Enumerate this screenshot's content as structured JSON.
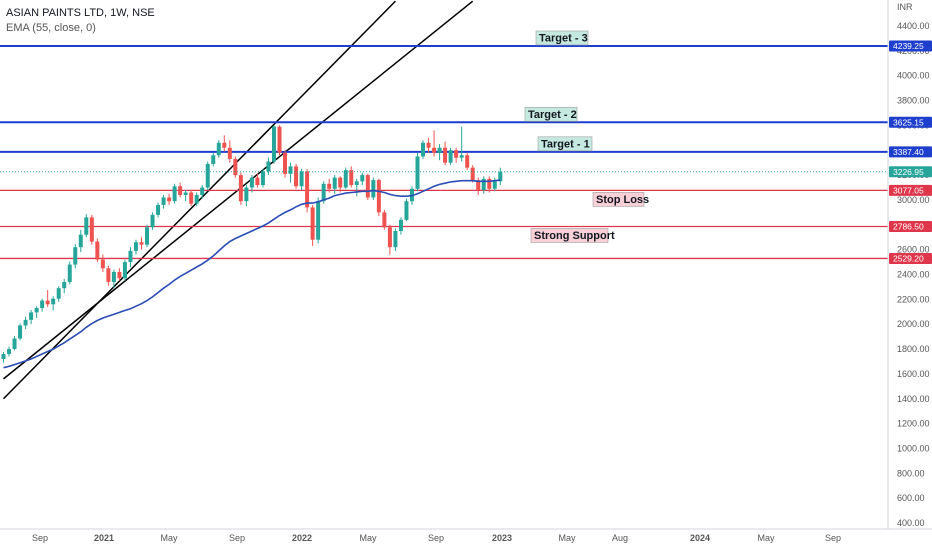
{
  "header": {
    "symbol_line": "ASIAN PAINTS LTD, 1W, NSE",
    "indicator_line": "EMA (55, close, 0)"
  },
  "price_axis": {
    "currency": "INR",
    "ticks": [
      "4400.00",
      "4200.00",
      "4000.00",
      "3800.00",
      "3600.00",
      "3400.00",
      "3200.00",
      "3000.00",
      "2800.00",
      "2600.00",
      "2400.00",
      "2200.00",
      "2000.00",
      "1800.00",
      "1600.00",
      "1400.00",
      "1200.00",
      "1000.00",
      "800.00",
      "600.00",
      "400.00"
    ]
  },
  "time_axis": {
    "ticks": [
      "Sep",
      "2021",
      "May",
      "Sep",
      "2022",
      "May",
      "Sep",
      "2023",
      "May",
      "Aug",
      "2024",
      "May",
      "Sep"
    ]
  },
  "colors": {
    "up": "#26a69a",
    "down": "#ef5350",
    "ema": "#2a4db5",
    "target_line": "#1e3fce",
    "support_line": "#e0364c",
    "trendline": "#000000",
    "last_price": "#26a69a",
    "target_label_bg": "#c6e9df",
    "support_label_bg": "#f8d0d6"
  },
  "levels": [
    {
      "name": "Target - 3",
      "price": 4239.25,
      "price_label": "4239.25",
      "kind": "target"
    },
    {
      "name": "Target - 2",
      "price": 3625.15,
      "price_label": "3625.15",
      "kind": "target"
    },
    {
      "name": "Target - 1",
      "price": 3387.4,
      "price_label": "3387.40",
      "kind": "target"
    },
    {
      "name": "Stop Loss",
      "price": 3077.05,
      "price_label": "3077.05",
      "kind": "support"
    },
    {
      "name": "Strong Support",
      "price": 2786.5,
      "price_label": "2786.50",
      "kind": "support"
    },
    {
      "name": "",
      "price": 2529.2,
      "price_label": "2529.20",
      "kind": "support"
    }
  ],
  "last_price": {
    "price": 3226.95,
    "label": "3226.95"
  },
  "chart_data": {
    "type": "candlestick",
    "title": "ASIAN PAINTS LTD, 1W, NSE",
    "xlabel": "",
    "ylabel": "",
    "ylim": [
      400,
      4600
    ],
    "grid": false,
    "candles": [
      {
        "o": 1720,
        "h": 1775,
        "l": 1690,
        "c": 1760
      },
      {
        "o": 1760,
        "h": 1820,
        "l": 1740,
        "c": 1800
      },
      {
        "o": 1800,
        "h": 1905,
        "l": 1790,
        "c": 1885
      },
      {
        "o": 1885,
        "h": 2005,
        "l": 1870,
        "c": 1990
      },
      {
        "o": 1990,
        "h": 2060,
        "l": 1960,
        "c": 2035
      },
      {
        "o": 2035,
        "h": 2115,
        "l": 2000,
        "c": 2095
      },
      {
        "o": 2095,
        "h": 2145,
        "l": 2050,
        "c": 2130
      },
      {
        "o": 2130,
        "h": 2205,
        "l": 2100,
        "c": 2190
      },
      {
        "o": 2190,
        "h": 2275,
        "l": 2140,
        "c": 2160
      },
      {
        "o": 2160,
        "h": 2225,
        "l": 2110,
        "c": 2205
      },
      {
        "o": 2205,
        "h": 2305,
        "l": 2180,
        "c": 2290
      },
      {
        "o": 2290,
        "h": 2365,
        "l": 2250,
        "c": 2340
      },
      {
        "o": 2340,
        "h": 2505,
        "l": 2320,
        "c": 2480
      },
      {
        "o": 2480,
        "h": 2645,
        "l": 2450,
        "c": 2620
      },
      {
        "o": 2620,
        "h": 2760,
        "l": 2580,
        "c": 2720
      },
      {
        "o": 2720,
        "h": 2885,
        "l": 2700,
        "c": 2860
      },
      {
        "o": 2860,
        "h": 2880,
        "l": 2640,
        "c": 2665
      },
      {
        "o": 2665,
        "h": 2690,
        "l": 2500,
        "c": 2520
      },
      {
        "o": 2520,
        "h": 2560,
        "l": 2420,
        "c": 2450
      },
      {
        "o": 2450,
        "h": 2470,
        "l": 2310,
        "c": 2340
      },
      {
        "o": 2340,
        "h": 2440,
        "l": 2290,
        "c": 2420
      },
      {
        "o": 2420,
        "h": 2450,
        "l": 2350,
        "c": 2370
      },
      {
        "o": 2370,
        "h": 2520,
        "l": 2350,
        "c": 2500
      },
      {
        "o": 2500,
        "h": 2620,
        "l": 2460,
        "c": 2590
      },
      {
        "o": 2590,
        "h": 2680,
        "l": 2560,
        "c": 2660
      },
      {
        "o": 2660,
        "h": 2700,
        "l": 2600,
        "c": 2640
      },
      {
        "o": 2640,
        "h": 2800,
        "l": 2620,
        "c": 2780
      },
      {
        "o": 2780,
        "h": 2900,
        "l": 2760,
        "c": 2880
      },
      {
        "o": 2880,
        "h": 2980,
        "l": 2860,
        "c": 2960
      },
      {
        "o": 2960,
        "h": 3040,
        "l": 2930,
        "c": 3020
      },
      {
        "o": 3020,
        "h": 3050,
        "l": 2960,
        "c": 2990
      },
      {
        "o": 2990,
        "h": 3130,
        "l": 2970,
        "c": 3110
      },
      {
        "o": 3110,
        "h": 3140,
        "l": 3020,
        "c": 3040
      },
      {
        "o": 3040,
        "h": 3080,
        "l": 2990,
        "c": 3060
      },
      {
        "o": 3060,
        "h": 3080,
        "l": 2950,
        "c": 2970
      },
      {
        "o": 2970,
        "h": 3060,
        "l": 2950,
        "c": 3040
      },
      {
        "o": 3040,
        "h": 3120,
        "l": 3010,
        "c": 3100
      },
      {
        "o": 3100,
        "h": 3310,
        "l": 3080,
        "c": 3290
      },
      {
        "o": 3290,
        "h": 3380,
        "l": 3270,
        "c": 3360
      },
      {
        "o": 3360,
        "h": 3480,
        "l": 3340,
        "c": 3460
      },
      {
        "o": 3460,
        "h": 3520,
        "l": 3390,
        "c": 3420
      },
      {
        "o": 3420,
        "h": 3480,
        "l": 3300,
        "c": 3330
      },
      {
        "o": 3330,
        "h": 3350,
        "l": 3180,
        "c": 3200
      },
      {
        "o": 3200,
        "h": 3220,
        "l": 2960,
        "c": 2990
      },
      {
        "o": 2990,
        "h": 3120,
        "l": 2950,
        "c": 3100
      },
      {
        "o": 3100,
        "h": 3200,
        "l": 3060,
        "c": 3180
      },
      {
        "o": 3180,
        "h": 3210,
        "l": 3100,
        "c": 3120
      },
      {
        "o": 3120,
        "h": 3250,
        "l": 3100,
        "c": 3230
      },
      {
        "o": 3230,
        "h": 3340,
        "l": 3200,
        "c": 3310
      },
      {
        "o": 3310,
        "h": 3600,
        "l": 3290,
        "c": 3590
      },
      {
        "o": 3590,
        "h": 3600,
        "l": 3360,
        "c": 3380
      },
      {
        "o": 3380,
        "h": 3400,
        "l": 3180,
        "c": 3210
      },
      {
        "o": 3210,
        "h": 3300,
        "l": 3140,
        "c": 3270
      },
      {
        "o": 3270,
        "h": 3290,
        "l": 3090,
        "c": 3110
      },
      {
        "o": 3110,
        "h": 3250,
        "l": 3080,
        "c": 3230
      },
      {
        "o": 3230,
        "h": 3250,
        "l": 2900,
        "c": 2940
      },
      {
        "o": 2940,
        "h": 2960,
        "l": 2630,
        "c": 2680
      },
      {
        "o": 2680,
        "h": 3020,
        "l": 2650,
        "c": 2990
      },
      {
        "o": 2990,
        "h": 3150,
        "l": 2970,
        "c": 3130
      },
      {
        "o": 3130,
        "h": 3170,
        "l": 3060,
        "c": 3090
      },
      {
        "o": 3090,
        "h": 3200,
        "l": 3050,
        "c": 3180
      },
      {
        "o": 3180,
        "h": 3190,
        "l": 3060,
        "c": 3100
      },
      {
        "o": 3100,
        "h": 3260,
        "l": 3090,
        "c": 3240
      },
      {
        "o": 3240,
        "h": 3270,
        "l": 3100,
        "c": 3120
      },
      {
        "o": 3120,
        "h": 3170,
        "l": 3030,
        "c": 3150
      },
      {
        "o": 3150,
        "h": 3220,
        "l": 3120,
        "c": 3200
      },
      {
        "o": 3200,
        "h": 3210,
        "l": 3000,
        "c": 3020
      },
      {
        "o": 3020,
        "h": 3180,
        "l": 3000,
        "c": 3160
      },
      {
        "o": 3160,
        "h": 3170,
        "l": 2870,
        "c": 2900
      },
      {
        "o": 2900,
        "h": 2920,
        "l": 2760,
        "c": 2780
      },
      {
        "o": 2780,
        "h": 2800,
        "l": 2560,
        "c": 2620
      },
      {
        "o": 2620,
        "h": 2770,
        "l": 2590,
        "c": 2750
      },
      {
        "o": 2750,
        "h": 2860,
        "l": 2720,
        "c": 2840
      },
      {
        "o": 2840,
        "h": 3010,
        "l": 2830,
        "c": 2990
      },
      {
        "o": 2990,
        "h": 3110,
        "l": 2960,
        "c": 3090
      },
      {
        "o": 3090,
        "h": 3380,
        "l": 3070,
        "c": 3350
      },
      {
        "o": 3350,
        "h": 3480,
        "l": 3330,
        "c": 3460
      },
      {
        "o": 3460,
        "h": 3500,
        "l": 3380,
        "c": 3420
      },
      {
        "o": 3420,
        "h": 3560,
        "l": 3350,
        "c": 3380
      },
      {
        "o": 3380,
        "h": 3450,
        "l": 3320,
        "c": 3420
      },
      {
        "o": 3420,
        "h": 3470,
        "l": 3280,
        "c": 3300
      },
      {
        "o": 3300,
        "h": 3420,
        "l": 3280,
        "c": 3400
      },
      {
        "o": 3400,
        "h": 3420,
        "l": 3300,
        "c": 3340
      },
      {
        "o": 3340,
        "h": 3590,
        "l": 3310,
        "c": 3360
      },
      {
        "o": 3360,
        "h": 3380,
        "l": 3240,
        "c": 3260
      },
      {
        "o": 3260,
        "h": 3280,
        "l": 3140,
        "c": 3160
      },
      {
        "o": 3160,
        "h": 3180,
        "l": 3040,
        "c": 3080
      },
      {
        "o": 3080,
        "h": 3190,
        "l": 3050,
        "c": 3170
      },
      {
        "o": 3170,
        "h": 3190,
        "l": 3060,
        "c": 3090
      },
      {
        "o": 3090,
        "h": 3180,
        "l": 3070,
        "c": 3150
      },
      {
        "o": 3150,
        "h": 3260,
        "l": 3120,
        "c": 3227
      }
    ],
    "ema": [
      1650,
      1660,
      1675,
      1690,
      1705,
      1720,
      1740,
      1760,
      1780,
      1800,
      1825,
      1850,
      1880,
      1910,
      1940,
      1975,
      2005,
      2030,
      2050,
      2065,
      2080,
      2095,
      2110,
      2125,
      2145,
      2165,
      2190,
      2220,
      2255,
      2290,
      2320,
      2355,
      2385,
      2410,
      2435,
      2460,
      2485,
      2515,
      2550,
      2590,
      2630,
      2665,
      2690,
      2710,
      2730,
      2750,
      2770,
      2790,
      2815,
      2845,
      2875,
      2900,
      2920,
      2945,
      2965,
      2975,
      2975,
      2985,
      3000,
      3015,
      3035,
      3045,
      3055,
      3060,
      3065,
      3070,
      3070,
      3075,
      3070,
      3060,
      3045,
      3035,
      3030,
      3030,
      3035,
      3050,
      3070,
      3090,
      3110,
      3125,
      3135,
      3145,
      3150,
      3155,
      3155,
      3155,
      3150,
      3150,
      3150,
      3155,
      3160
    ],
    "trendlines": [
      {
        "from": {
          "index": 0,
          "price": 1400
        },
        "to": {
          "index": 71,
          "price": 4600
        }
      },
      {
        "from": {
          "index": 0,
          "price": 1560
        },
        "to": {
          "index": 85,
          "price": 4600
        }
      }
    ]
  }
}
